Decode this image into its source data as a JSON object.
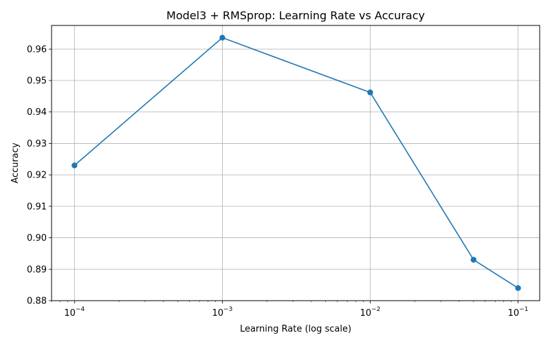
{
  "chart_data": {
    "type": "line",
    "title": "Model3 + RMSprop: Learning Rate vs Accuracy",
    "xlabel": "Learning Rate (log scale)",
    "ylabel": "Accuracy",
    "x_scale": "log",
    "xlim": [
      7e-05,
      0.14
    ],
    "ylim": [
      0.88,
      0.9675
    ],
    "x_ticks": [
      {
        "value": 0.0001,
        "base": "10",
        "exp": "−4"
      },
      {
        "value": 0.001,
        "base": "10",
        "exp": "−3"
      },
      {
        "value": 0.01,
        "base": "10",
        "exp": "−2"
      },
      {
        "value": 0.1,
        "base": "10",
        "exp": "−1"
      }
    ],
    "y_ticks": [
      "0.88",
      "0.89",
      "0.90",
      "0.91",
      "0.92",
      "0.93",
      "0.94",
      "0.95",
      "0.96"
    ],
    "grid": true,
    "series": [
      {
        "color": "#1f77b4",
        "marker": "circle",
        "x": [
          0.0001,
          0.001,
          0.01,
          0.05,
          0.1
        ],
        "y": [
          0.923,
          0.9636,
          0.9462,
          0.893,
          0.884
        ]
      }
    ]
  }
}
